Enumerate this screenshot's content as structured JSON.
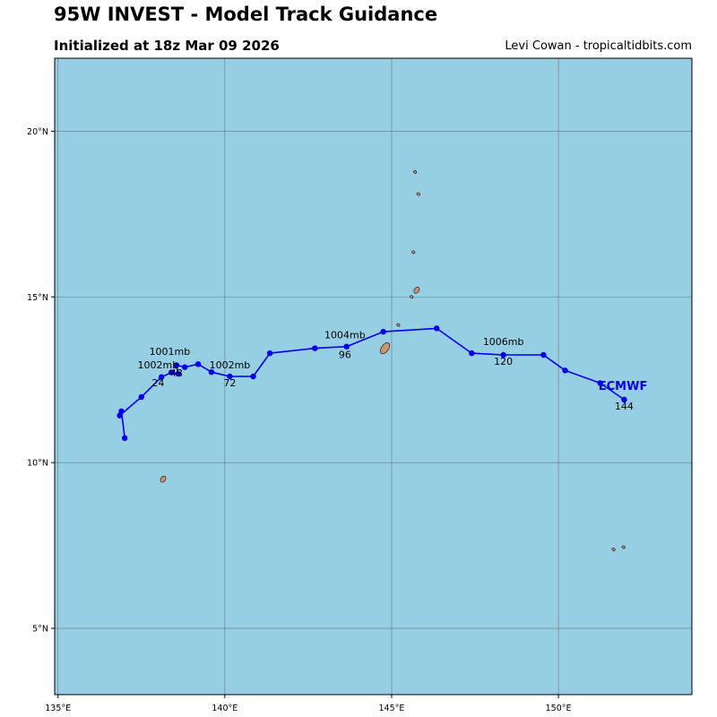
{
  "header": {
    "title": "95W INVEST - Model Track Guidance",
    "subtitle": "Initialized at 18z Mar 09 2026",
    "credit": "Levi Cowan - tropicaltidbits.com"
  },
  "colors": {
    "ocean": "#96cee3",
    "land": "#c8956c",
    "track": "#0000ee",
    "grid": "#555555"
  },
  "chart_data": {
    "type": "map-track",
    "xlim": [
      134.9,
      154.0
    ],
    "ylim": [
      3.0,
      22.2
    ],
    "x_ticks": [
      {
        "value": 135,
        "label": "135°E"
      },
      {
        "value": 140,
        "label": "140°E"
      },
      {
        "value": 145,
        "label": "145°E"
      },
      {
        "value": 150,
        "label": "150°E"
      }
    ],
    "y_ticks": [
      {
        "value": 5,
        "label": "5°N"
      },
      {
        "value": 10,
        "label": "10°N"
      },
      {
        "value": 15,
        "label": "15°N"
      },
      {
        "value": 20,
        "label": "20°N"
      }
    ],
    "model": {
      "name": "ECMWF",
      "track": [
        [
          137.0,
          10.74
        ],
        [
          136.9,
          11.55
        ],
        [
          136.85,
          11.42
        ],
        [
          137.5,
          11.98
        ],
        [
          138.1,
          12.58
        ],
        [
          138.4,
          12.72
        ],
        [
          138.6,
          12.68
        ],
        [
          138.55,
          12.94
        ],
        [
          138.8,
          12.88
        ],
        [
          139.2,
          12.97
        ],
        [
          139.6,
          12.73
        ],
        [
          140.15,
          12.6
        ],
        [
          140.85,
          12.6
        ],
        [
          141.35,
          13.3
        ],
        [
          142.7,
          13.45
        ],
        [
          143.65,
          13.5
        ],
        [
          144.75,
          13.95
        ],
        [
          146.35,
          14.05
        ],
        [
          147.4,
          13.3
        ],
        [
          148.35,
          13.25
        ],
        [
          149.55,
          13.25
        ],
        [
          150.2,
          12.78
        ],
        [
          151.25,
          12.4
        ],
        [
          151.97,
          11.9
        ]
      ],
      "label_position": [
        151.2,
        12.2
      ],
      "pressure_labels": [
        {
          "text": "1002mb",
          "lon": 138.0,
          "lat": 12.85
        },
        {
          "text": "1001mb",
          "lon": 138.35,
          "lat": 13.25
        },
        {
          "text": "1002mb",
          "lon": 140.15,
          "lat": 12.85
        },
        {
          "text": "1004mb",
          "lon": 143.6,
          "lat": 13.75
        },
        {
          "text": "1006mb",
          "lon": 148.35,
          "lat": 13.55
        }
      ],
      "hour_labels": [
        {
          "text": "24",
          "lon": 138.0,
          "lat": 12.3
        },
        {
          "text": "48",
          "lon": 138.55,
          "lat": 12.6
        },
        {
          "text": "72",
          "lon": 140.15,
          "lat": 12.3
        },
        {
          "text": "96",
          "lon": 143.6,
          "lat": 13.15
        },
        {
          "text": "120",
          "lon": 148.35,
          "lat": 12.95
        },
        {
          "text": "144",
          "lon": 151.97,
          "lat": 11.6
        }
      ]
    },
    "islands": [
      {
        "name": "guam",
        "lon": 144.8,
        "lat": 13.45
      },
      {
        "name": "rota",
        "lon": 145.2,
        "lat": 14.15
      },
      {
        "name": "saipan",
        "lon": 145.75,
        "lat": 15.2
      },
      {
        "name": "tinian",
        "lon": 145.6,
        "lat": 15.0
      },
      {
        "name": "anatahan",
        "lon": 145.65,
        "lat": 16.35
      },
      {
        "name": "pagan",
        "lon": 145.8,
        "lat": 18.1
      },
      {
        "name": "agrihan",
        "lon": 145.7,
        "lat": 18.77
      },
      {
        "name": "yap",
        "lon": 138.15,
        "lat": 9.5
      },
      {
        "name": "chuuk-west",
        "lon": 151.65,
        "lat": 7.38
      },
      {
        "name": "chuuk-east",
        "lon": 151.95,
        "lat": 7.45
      }
    ]
  }
}
